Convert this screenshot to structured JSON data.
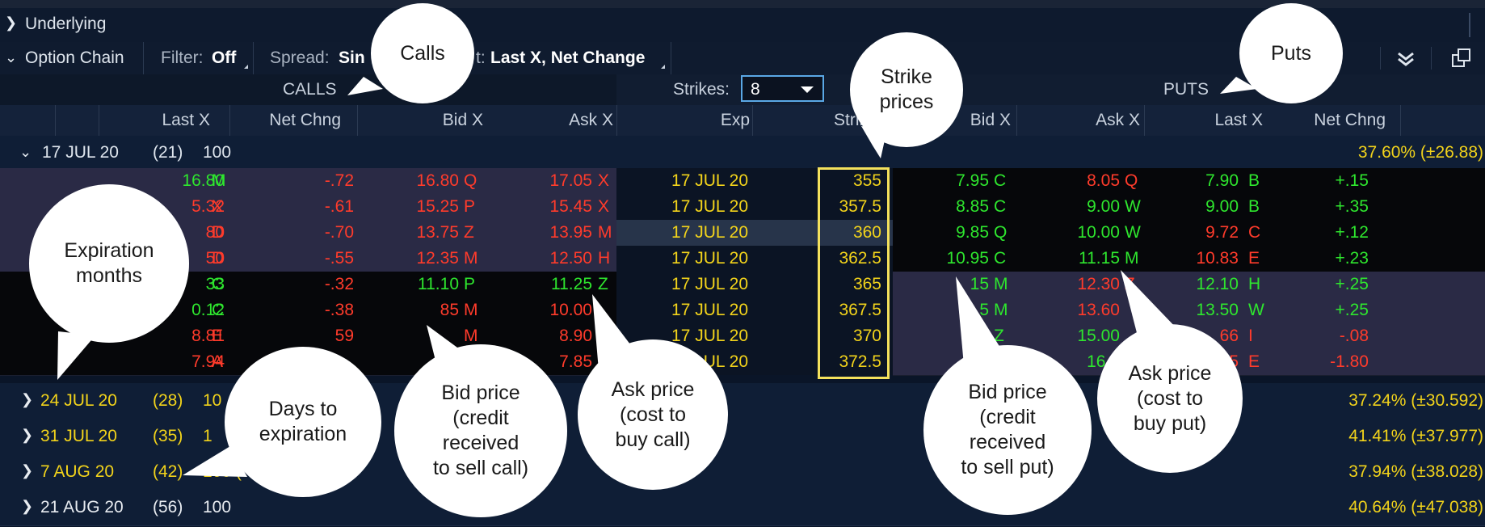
{
  "underlying": {
    "label": "Underlying"
  },
  "chain_bar": {
    "title": "Option Chain",
    "filter_label": "Filter:",
    "filter_value": "Off",
    "spread_label": "Spread:",
    "spread_value_visible": "Sin",
    "layout_label_visible": "t:",
    "layout_value": "Last X, Net Change"
  },
  "headers": {
    "calls": "CALLS",
    "puts": "PUTS",
    "strikes_label": "Strikes:",
    "strikes_value": "8",
    "calls_cols": [
      "Last X",
      "Net Chng",
      "Bid X",
      "Ask X"
    ],
    "exp": "Exp",
    "strike": "Strik",
    "puts_cols": [
      "Bid X",
      "Ask X",
      "Last X",
      "Net Chng"
    ]
  },
  "expanded_expiration": {
    "label": "17 JUL 20",
    "days": "(21)",
    "mult": "100",
    "iv": "37.60% (±26.88)"
  },
  "rows": [
    {
      "call_last": "16.80",
      "call_last_ex": "M",
      "call_net": "-.72",
      "call_bid": "16.80",
      "call_bid_ex": "Q",
      "call_ask": "17.05",
      "call_ask_ex": "X",
      "exp": "17 JUL 20",
      "strike": "355",
      "put_bid": "7.95",
      "put_bid_ex": "C",
      "put_ask": "8.05",
      "put_ask_ex": "Q",
      "put_last": "7.90",
      "put_last_ex": "B",
      "put_net": "+.15"
    },
    {
      "call_last": "5.32",
      "call_last_ex": "X",
      "call_net": "-.61",
      "call_bid": "15.25",
      "call_bid_ex": "P",
      "call_ask": "15.45",
      "call_ask_ex": "X",
      "exp": "17 JUL 20",
      "strike": "357.5",
      "put_bid": "8.85",
      "put_bid_ex": "C",
      "put_ask": "9.00",
      "put_ask_ex": "W",
      "put_last": "9.00",
      "put_last_ex": "B",
      "put_net": "+.35"
    },
    {
      "call_last": "80",
      "call_last_ex": "D",
      "call_net": "-.70",
      "call_bid": "13.75",
      "call_bid_ex": "Z",
      "call_ask": "13.95",
      "call_ask_ex": "M",
      "exp": "17 JUL 20",
      "strike": "360",
      "put_bid": "9.85",
      "put_bid_ex": "Q",
      "put_ask": "10.00",
      "put_ask_ex": "W",
      "put_last": "9.72",
      "put_last_ex": "C",
      "put_net": "+.12"
    },
    {
      "call_last": "50",
      "call_last_ex": "D",
      "call_net": "-.55",
      "call_bid": "12.35",
      "call_bid_ex": "M",
      "call_ask": "12.50",
      "call_ask_ex": "H",
      "exp": "17 JUL 20",
      "strike": "362.5",
      "put_bid": "10.95",
      "put_bid_ex": "C",
      "put_ask": "11.15",
      "put_ask_ex": "M",
      "put_last": "10.83",
      "put_last_ex": "E",
      "put_net": "+.23"
    },
    {
      "call_last": "33",
      "call_last_ex": "C",
      "call_net": "-.32",
      "call_bid": "11.10",
      "call_bid_ex": "P",
      "call_ask": "11.25",
      "call_ask_ex": "Z",
      "exp": "17 JUL 20",
      "strike": "365",
      "put_bid": "15",
      "put_bid_ex": "M",
      "put_ask": "12.30",
      "put_ask_ex": "Z",
      "put_last": "12.10",
      "put_last_ex": "H",
      "put_net": "+.25"
    },
    {
      "call_last": "0.12",
      "call_last_ex": "C",
      "call_net": "-.38",
      "call_bid": "85",
      "call_bid_ex": "M",
      "call_ask": "10.00",
      "call_ask_ex": "",
      "exp": "17 JUL 20",
      "strike": "367.5",
      "put_bid": "5",
      "put_bid_ex": "M",
      "put_ask": "13.60",
      "put_ask_ex": "",
      "put_last": "13.50",
      "put_last_ex": "W",
      "put_net": "+.25"
    },
    {
      "call_last": "8.81",
      "call_last_ex": "E",
      "call_net": "59",
      "call_bid": "",
      "call_bid_ex": "M",
      "call_ask": "8.90",
      "call_ask_ex": "",
      "exp": "17 JUL 20",
      "strike": "370",
      "put_bid": "1",
      "put_bid_ex": "Z",
      "put_ask": "15.00",
      "put_ask_ex": "",
      "put_last": "66",
      "put_last_ex": "I",
      "put_net": "-.08"
    },
    {
      "call_last": "7.94",
      "call_last_ex": "A",
      "call_net": "",
      "call_bid": "",
      "call_bid_ex": "",
      "call_ask": "7.85",
      "call_ask_ex": "",
      "exp": "UL 20",
      "strike": "372.5",
      "put_bid": "1",
      "put_bid_ex": "",
      "put_ask": "16.5",
      "put_ask_ex": "",
      "put_last": "5",
      "put_last_ex": "E",
      "put_net": "-1.80"
    }
  ],
  "collapsed_expirations": [
    {
      "label": "24 JUL 20",
      "days": "(28)",
      "mult": "10",
      "iv": "37.24% (±30.592)"
    },
    {
      "label": "31 JUL 20",
      "days": "(35)",
      "mult": "1",
      "iv": "41.41% (±37.977)"
    },
    {
      "label": "7 AUG 20",
      "days": "(42)",
      "mult": "100 (",
      "iv": "37.94% (±38.028)"
    },
    {
      "label": "21 AUG 20",
      "days": "(56)",
      "mult": "100",
      "iv": "40.64% (±47.038)"
    }
  ],
  "callouts": {
    "calls": "Calls",
    "puts": "Puts",
    "strike_prices": "Strike\nprices",
    "expiration_months": "Expiration\nmonths",
    "days_to_expiration": "Days to\nexpiration",
    "bid_call": "Bid price\n(credit\nreceived\nto sell call)",
    "ask_call": "Ask price\n(cost to\nbuy call)",
    "bid_put": "Bid price\n(credit\nreceived\nto sell put)",
    "ask_put": "Ask price\n(cost to\nbuy put)"
  },
  "colors": {
    "up": "#2ee62e",
    "down": "#ff3b2b",
    "highlight": "#f2d31b",
    "background": "#0a1528"
  }
}
